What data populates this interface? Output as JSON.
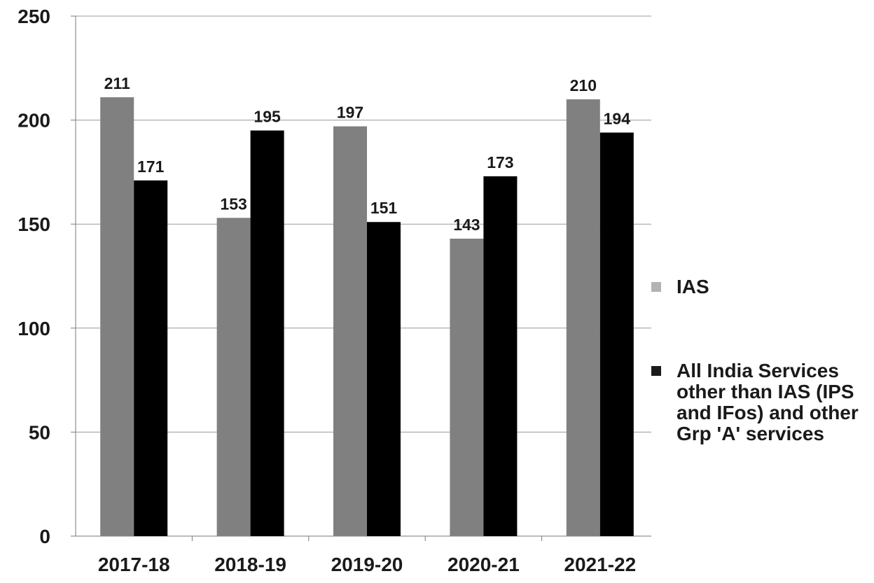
{
  "chart_data": {
    "type": "bar",
    "title": "",
    "xlabel": "",
    "ylabel": "",
    "categories": [
      "2017-18",
      "2018-19",
      "2019-20",
      "2020-21",
      "2021-22"
    ],
    "series": [
      {
        "name": "IAS",
        "values": [
          211,
          153,
          197,
          143,
          210
        ],
        "color": "#808080"
      },
      {
        "name": "All India Services other than IAS (IPS and IFos) and other Grp 'A' services",
        "values": [
          171,
          195,
          151,
          173,
          194
        ],
        "color": "#000000"
      }
    ],
    "data_labels": [
      [
        "211",
        "153",
        "197",
        "143",
        "210"
      ],
      [
        "171",
        "195",
        "151",
        "173",
        "194"
      ]
    ],
    "ylim": [
      0,
      250
    ],
    "yticks": [
      0,
      50,
      100,
      150,
      200,
      250
    ],
    "ytick_labels": [
      "0",
      "50",
      "100",
      "150",
      "200",
      "250"
    ],
    "grid": "horizontal",
    "legend_position": "right"
  },
  "legend": {
    "items": [
      {
        "label": "IAS",
        "color": "#b3b3b3"
      },
      {
        "label": "All India Services other than IAS (IPS and IFos) and other Grp 'A' services",
        "color": "#1a1a1a"
      }
    ]
  }
}
